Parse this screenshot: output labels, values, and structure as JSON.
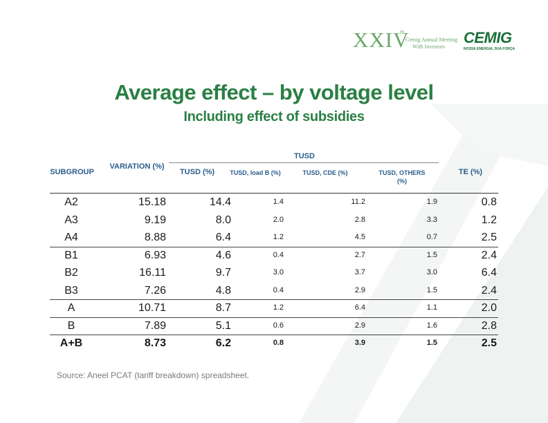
{
  "header": {
    "event_roman": "XXIV",
    "event_sup": "th",
    "event_line1": "Cemig Annual Meeting",
    "event_line2": "With Investors",
    "logo_word": "CEMIG",
    "logo_tagline": "NOSSA ENERGIA, SUA FORÇA"
  },
  "title": "Average effect – by voltage level",
  "subtitle": "Including effect of subsidies",
  "table": {
    "headers": {
      "subgroup": "SUBGROUP",
      "variation": "VARIATION (%)",
      "tusd_group": "TUSD",
      "tusd": "TUSD (%)",
      "tusd_load_b": "TUSD, load B (%)",
      "tusd_cde": "TUSD, CDE (%)",
      "tusd_others": "TUSD, OTHERS (%)",
      "te": "TE (%)"
    },
    "rows": [
      {
        "subgroup": "A2",
        "variation": "15.18",
        "tusd": "14.4",
        "load_b": "1.4",
        "cde": "11.2",
        "others": "1.9",
        "te": "0.8"
      },
      {
        "subgroup": "A3",
        "variation": "9.19",
        "tusd": "8.0",
        "load_b": "2.0",
        "cde": "2.8",
        "others": "3.3",
        "te": "1.2"
      },
      {
        "subgroup": "A4",
        "variation": "8.88",
        "tusd": "6.4",
        "load_b": "1.2",
        "cde": "4.5",
        "others": "0.7",
        "te": "2.5"
      },
      {
        "subgroup": "B1",
        "variation": "6.93",
        "tusd": "4.6",
        "load_b": "0.4",
        "cde": "2.7",
        "others": "1.5",
        "te": "2.4"
      },
      {
        "subgroup": "B2",
        "variation": "16.11",
        "tusd": "9.7",
        "load_b": "3.0",
        "cde": "3.7",
        "others": "3.0",
        "te": "6.4"
      },
      {
        "subgroup": "B3",
        "variation": "7.26",
        "tusd": "4.8",
        "load_b": "0.4",
        "cde": "2.9",
        "others": "1.5",
        "te": "2.4"
      },
      {
        "subgroup": "A",
        "variation": "10.71",
        "tusd": "8.7",
        "load_b": "1.2",
        "cde": "6.4",
        "others": "1.1",
        "te": "2.0"
      },
      {
        "subgroup": "B",
        "variation": "7.89",
        "tusd": "5.1",
        "load_b": "0.6",
        "cde": "2.9",
        "others": "1.6",
        "te": "2.8"
      },
      {
        "subgroup": "A+B",
        "variation": "8.73",
        "tusd": "6.2",
        "load_b": "0.8",
        "cde": "3.9",
        "others": "1.5",
        "te": "2.5"
      }
    ]
  },
  "source": "Source: Aneel PCAT (tariff breakdown) spreadsheet."
}
